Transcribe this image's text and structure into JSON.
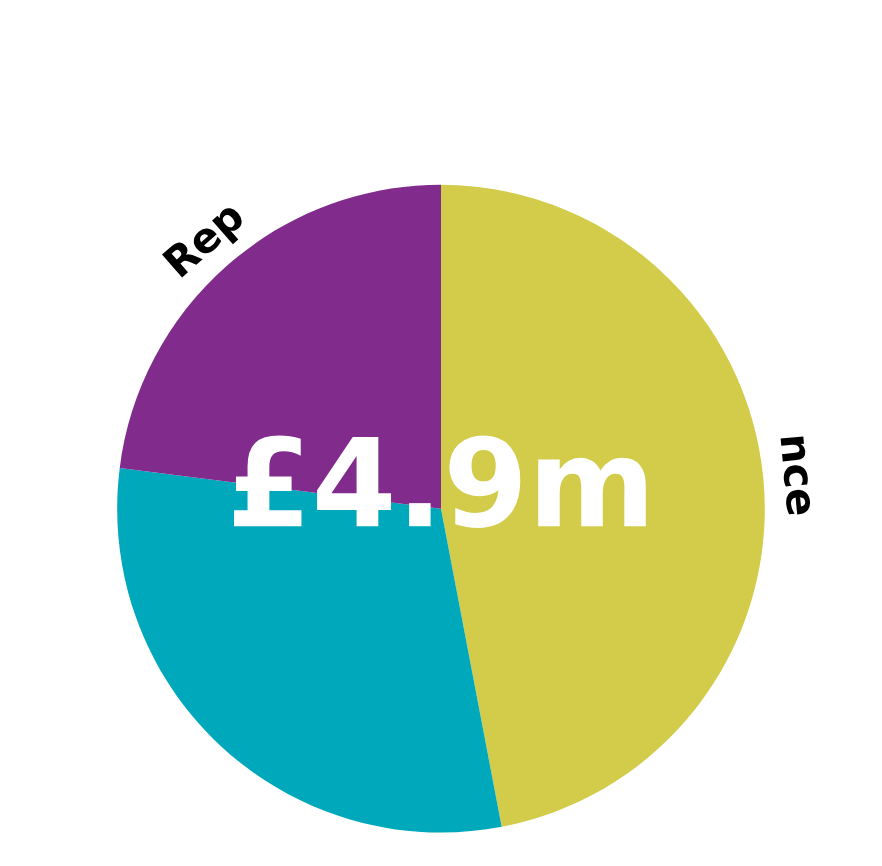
{
  "chart_data": {
    "type": "pie",
    "categories": [
      "nce",
      null,
      "Rep"
    ],
    "values": [
      47,
      30,
      23
    ],
    "colors": [
      "#d2cc4a",
      "#00a8bc",
      "#812b8d"
    ],
    "annotations": [
      "£4.9m"
    ]
  }
}
